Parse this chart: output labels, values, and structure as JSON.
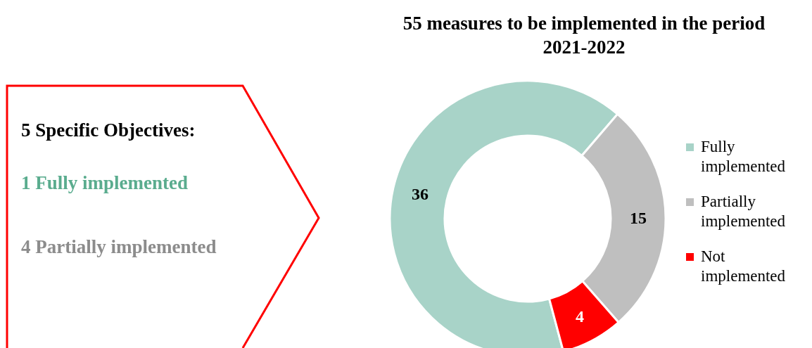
{
  "chart_data": [
    {
      "type": "other",
      "annotations": [
        "5 Specific Objectives:",
        "1 Fully implemented",
        "4 Partially implemented"
      ],
      "colors": [
        "#000000",
        "#5aac8e",
        "#8c8c8c"
      ]
    },
    {
      "type": "donut",
      "title": "55 measures to be implemented in the period 2021-2022",
      "categories": [
        "Fully implemented",
        "Partially implemented",
        "Not implemented"
      ],
      "values": [
        36,
        15,
        4
      ],
      "colors": [
        "#a8d3c8",
        "#bfbfbf",
        "#ff0000"
      ],
      "data_labels": true,
      "legend": "right"
    }
  ]
}
